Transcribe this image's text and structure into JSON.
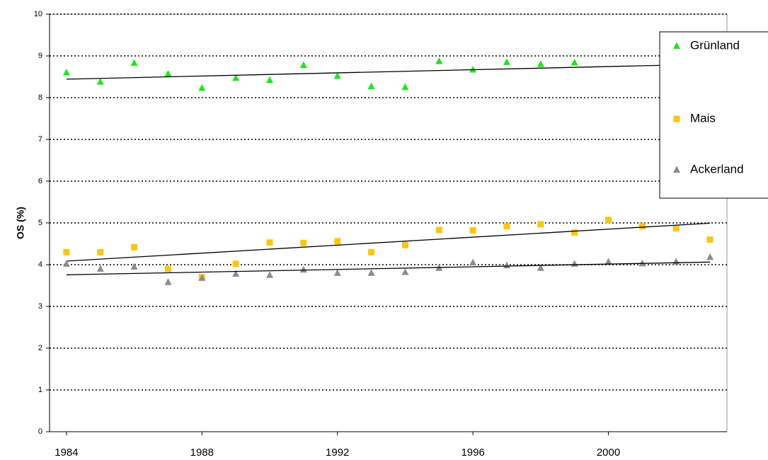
{
  "chart_data": {
    "type": "scatter",
    "y_label": "OS (%)",
    "x": [
      1984,
      1985,
      1986,
      1987,
      1988,
      1989,
      1990,
      1991,
      1992,
      1993,
      1994,
      1995,
      1996,
      1997,
      1998,
      1999,
      2000,
      2001,
      2002,
      2003
    ],
    "xlim": [
      1983.5,
      2003.5
    ],
    "xticks": [
      1984,
      1988,
      1992,
      1996,
      2000
    ],
    "ylim": [
      0,
      10
    ],
    "yticks": [
      0,
      1,
      2,
      3,
      4,
      5,
      6,
      7,
      8,
      9,
      10
    ],
    "grid": true,
    "trendline": true,
    "legend": "right",
    "series": [
      {
        "name": "Grünland",
        "color": "#1ee61e",
        "marker": "triangle",
        "values": [
          8.6,
          8.38,
          8.83,
          8.57,
          8.23,
          8.47,
          8.42,
          8.78,
          8.52,
          8.27,
          8.25,
          8.87,
          8.67,
          8.85,
          8.8,
          8.84,
          null,
          null,
          null,
          null
        ]
      },
      {
        "name": "Mais",
        "color": "#fbc515",
        "marker": "square",
        "values": [
          4.3,
          4.3,
          4.42,
          3.9,
          3.7,
          4.02,
          4.53,
          4.52,
          4.56,
          4.3,
          4.47,
          4.83,
          4.82,
          4.92,
          4.97,
          4.77,
          5.07,
          4.92,
          4.87,
          4.6
        ]
      },
      {
        "name": "Ackerland",
        "color": "#8c8c8c",
        "marker": "triangle",
        "values": [
          4.02,
          3.9,
          3.95,
          3.58,
          3.68,
          3.78,
          3.75,
          3.88,
          3.8,
          3.8,
          3.82,
          3.92,
          4.05,
          3.98,
          3.92,
          4.02,
          4.07,
          4.03,
          4.07,
          4.18
        ]
      }
    ]
  }
}
